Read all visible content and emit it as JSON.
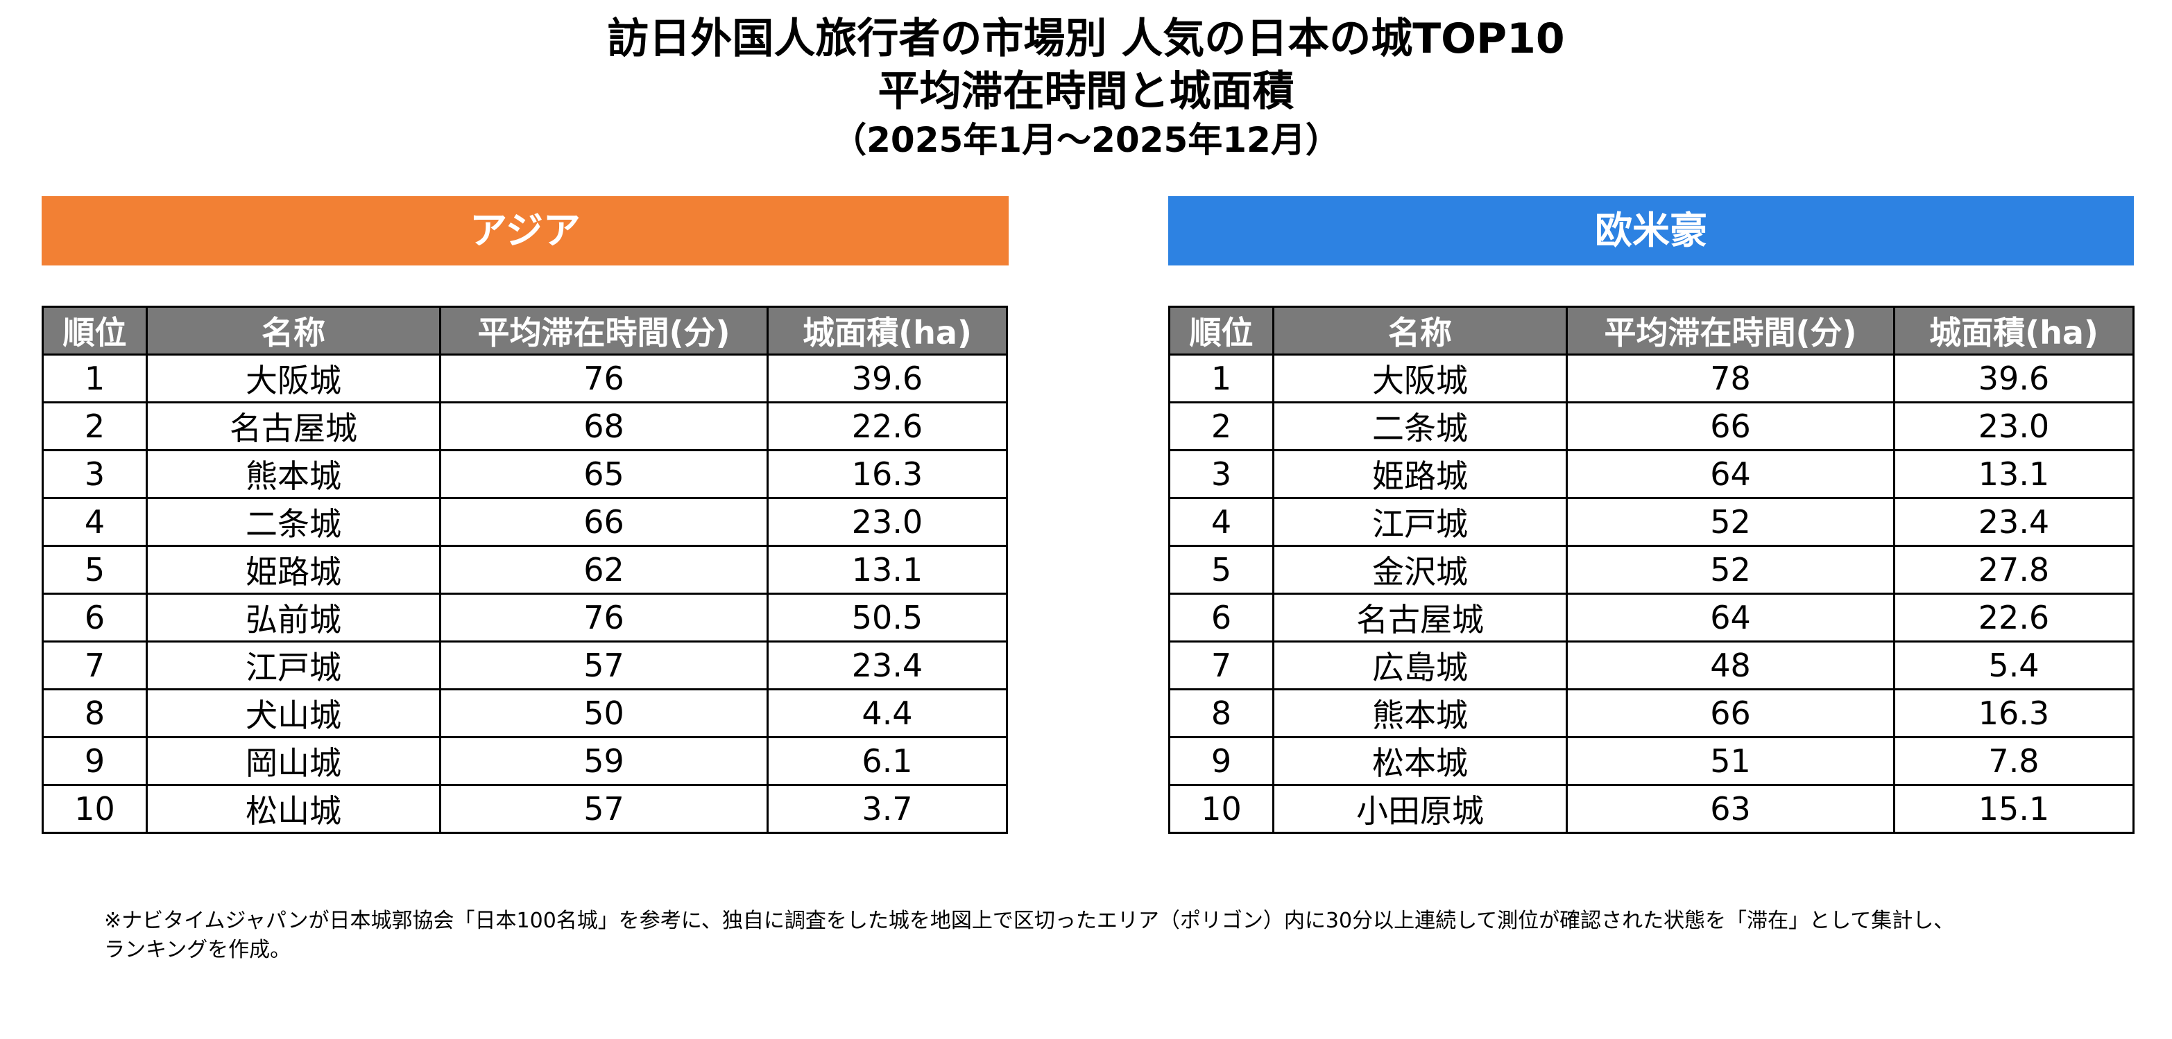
{
  "title": {
    "line1": "訪日外国人旅行者の市場別 人気の日本の城TOP10",
    "line2": "平均滞在時間と城面積",
    "line3": "（2025年1月～2025年12月）"
  },
  "asia": {
    "header": "アジア",
    "color": "#f28034",
    "columns": [
      "順位",
      "名称",
      "平均滞在時間(分)",
      "城面積(ha)"
    ],
    "rows": [
      [
        "1",
        "大阪城",
        "76",
        "39.6"
      ],
      [
        "2",
        "名古屋城",
        "68",
        "22.6"
      ],
      [
        "3",
        "熊本城",
        "65",
        "16.3"
      ],
      [
        "4",
        "二条城",
        "66",
        "23.0"
      ],
      [
        "5",
        "姫路城",
        "62",
        "13.1"
      ],
      [
        "6",
        "弘前城",
        "76",
        "50.5"
      ],
      [
        "7",
        "江戸城",
        "57",
        "23.4"
      ],
      [
        "8",
        "犬山城",
        "50",
        "4.4"
      ],
      [
        "9",
        "岡山城",
        "59",
        "6.1"
      ],
      [
        "10",
        "松山城",
        "57",
        "3.7"
      ]
    ]
  },
  "west": {
    "header": "欧米豪",
    "color": "#2d82e2",
    "columns": [
      "順位",
      "名称",
      "平均滞在時間(分)",
      "城面積(ha)"
    ],
    "rows": [
      [
        "1",
        "大阪城",
        "78",
        "39.6"
      ],
      [
        "2",
        "二条城",
        "66",
        "23.0"
      ],
      [
        "3",
        "姫路城",
        "64",
        "13.1"
      ],
      [
        "4",
        "江戸城",
        "52",
        "23.4"
      ],
      [
        "5",
        "金沢城",
        "52",
        "27.8"
      ],
      [
        "6",
        "名古屋城",
        "64",
        "22.6"
      ],
      [
        "7",
        "広島城",
        "48",
        "5.4"
      ],
      [
        "8",
        "熊本城",
        "66",
        "16.3"
      ],
      [
        "9",
        "松本城",
        "51",
        "7.8"
      ],
      [
        "10",
        "小田原城",
        "63",
        "15.1"
      ]
    ]
  },
  "note": {
    "line1": "※ナビタイムジャパンが日本城郭協会「日本100名城」を参考に、独自に調査をした城を地図上で区切ったエリア（ポリゴン）内に30分以上連続して測位が確認された状態を「滞在」として集計し、",
    "line2": "ランキングを作成。"
  }
}
